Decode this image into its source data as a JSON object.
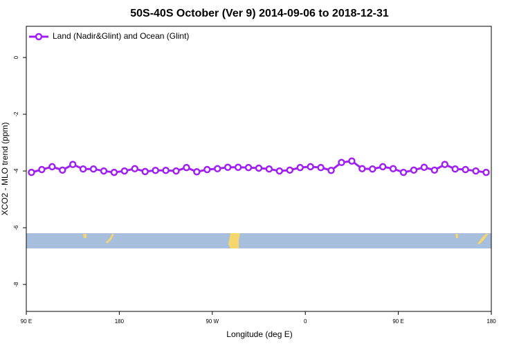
{
  "chart_data": {
    "type": "line",
    "title": "50S-40S October (Ver 9)   2014-09-06 to 2018-12-31",
    "xlabel": "Longitude (deg E)",
    "ylabel": "XCO2 - MLO trend (ppm)",
    "xlim": [
      90,
      540
    ],
    "ylim": [
      -8.95,
      1.1
    ],
    "xticks": [
      {
        "value": 90,
        "label": "90 E"
      },
      180,
      {
        "value": 270,
        "label": "90 W"
      },
      {
        "value": 360,
        "label": "0"
      },
      {
        "value": 450,
        "label": "90 E"
      },
      {
        "value": 540,
        "label": "180"
      }
    ],
    "yticks": [
      0,
      -2,
      -4,
      -6,
      -8
    ],
    "legend": "top-left",
    "x": [
      95,
      105,
      115,
      125,
      135,
      145,
      155,
      165,
      175,
      185,
      195,
      205,
      215,
      225,
      235,
      245,
      255,
      265,
      275,
      285,
      295,
      305,
      315,
      325,
      335,
      345,
      355,
      365,
      375,
      385,
      395,
      405,
      415,
      425,
      435,
      445,
      455,
      465,
      475,
      485,
      495,
      505,
      515,
      525,
      535
    ],
    "series": [
      {
        "name": "Land (Nadir&Glint) and Ocean (Glint)",
        "color": "#a020f0",
        "values": [
          -4.05,
          -3.95,
          -3.85,
          -3.97,
          -3.77,
          -3.93,
          -3.93,
          -4.0,
          -4.05,
          -4.0,
          -3.92,
          -4.02,
          -3.98,
          -3.98,
          -4.0,
          -3.88,
          -4.03,
          -3.95,
          -3.92,
          -3.87,
          -3.87,
          -3.88,
          -3.9,
          -3.93,
          -4.0,
          -3.97,
          -3.88,
          -3.85,
          -3.88,
          -3.98,
          -3.7,
          -3.65,
          -3.92,
          -3.93,
          -3.85,
          -3.92,
          -4.05,
          -3.97,
          -3.87,
          -3.97,
          -3.77,
          -3.93,
          -3.95,
          -4.0,
          -4.05
        ]
      }
    ]
  }
}
